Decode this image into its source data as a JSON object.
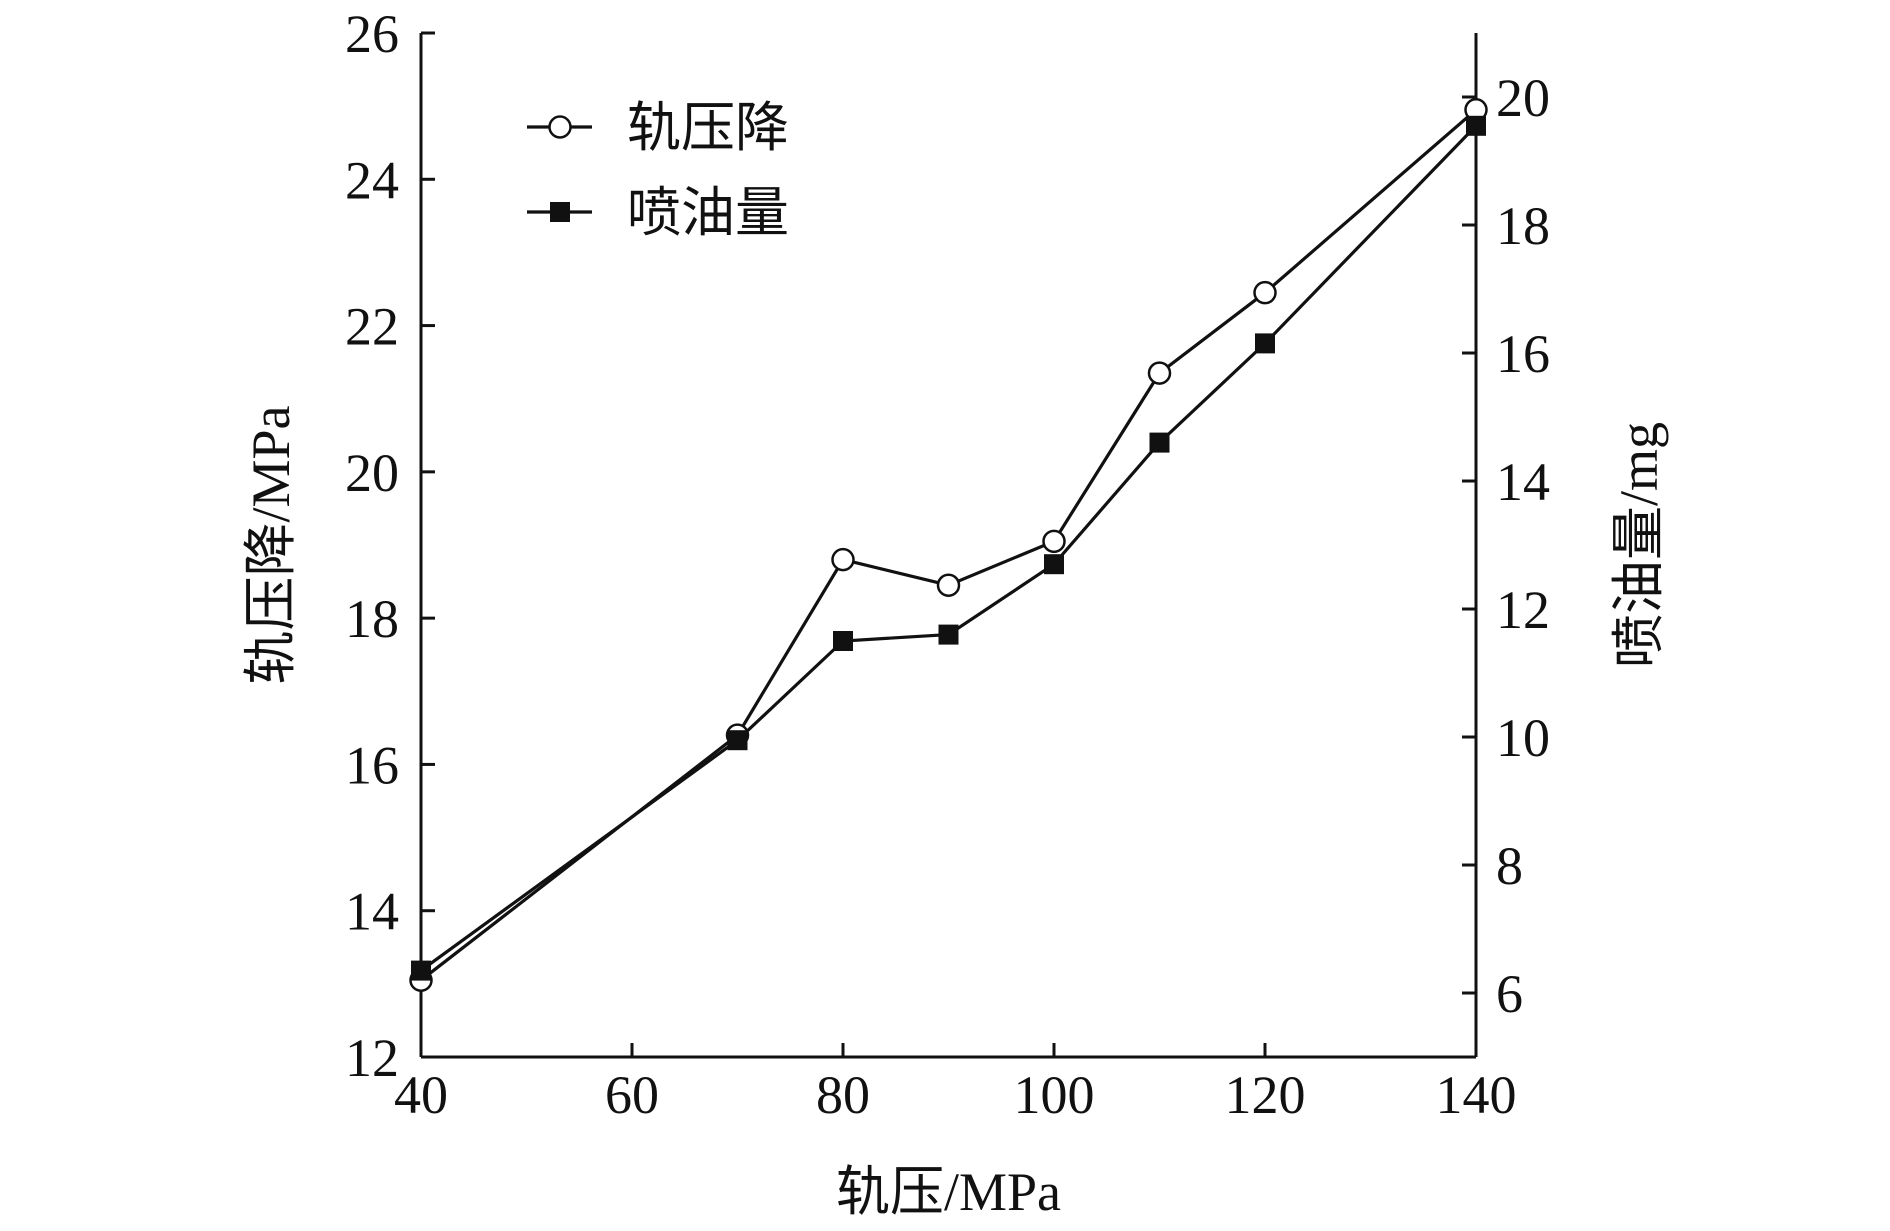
{
  "chart_data": {
    "type": "line",
    "xlabel": "轨压/MPa",
    "ylabel_left": "轨压降/MPa",
    "ylabel_right": "喷油量/mg",
    "xlim": [
      40,
      140
    ],
    "ylim_left": [
      12,
      26
    ],
    "ylim_right": [
      5,
      21
    ],
    "x_ticks": [
      40,
      60,
      80,
      100,
      120,
      140
    ],
    "y_left_ticks": [
      12,
      14,
      16,
      18,
      20,
      22,
      24,
      26
    ],
    "y_right_ticks": [
      6,
      8,
      10,
      12,
      14,
      16,
      18,
      20
    ],
    "legend_position": "top-left",
    "grid": false,
    "series": [
      {
        "name": "轨压降",
        "axis": "left",
        "marker": "open-circle",
        "x": [
          40,
          70,
          80,
          90,
          100,
          110,
          120,
          140
        ],
        "values": [
          13.05,
          16.4,
          18.8,
          18.45,
          19.05,
          21.35,
          22.45,
          24.95
        ]
      },
      {
        "name": "喷油量",
        "axis": "right",
        "marker": "filled-square",
        "x": [
          40,
          70,
          80,
          90,
          100,
          110,
          120,
          140
        ],
        "values": [
          6.35,
          9.95,
          11.5,
          11.6,
          12.7,
          14.6,
          16.15,
          19.55
        ]
      }
    ]
  }
}
